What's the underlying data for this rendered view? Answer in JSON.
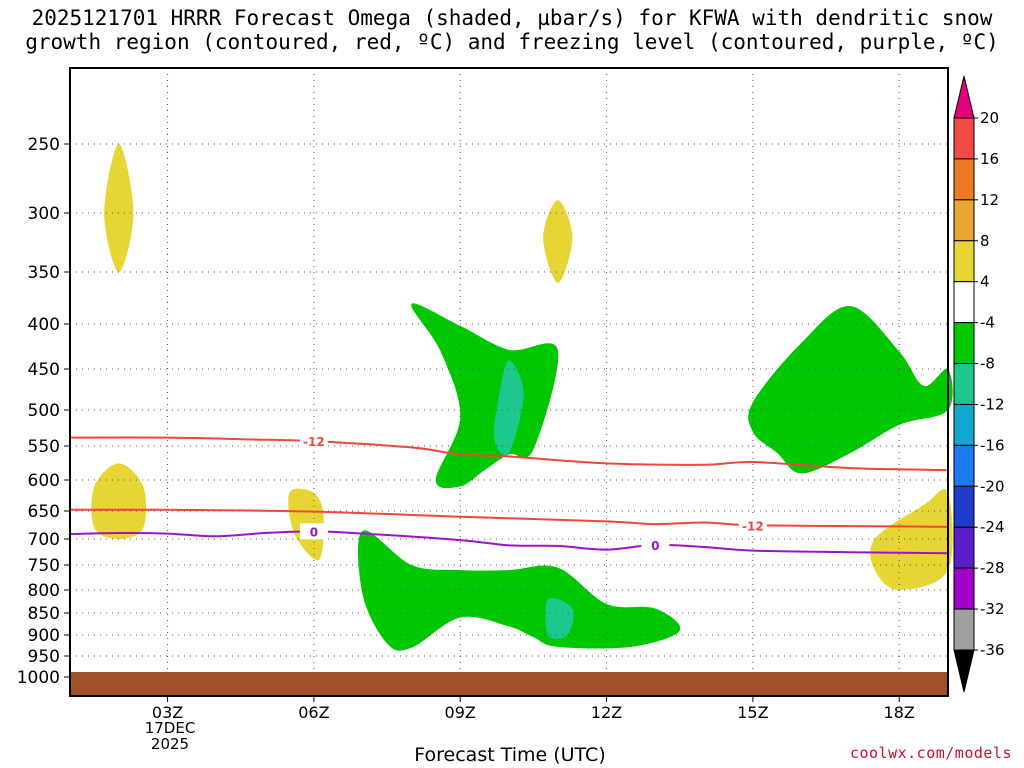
{
  "title": {
    "line1": "2025121701 HRRR Forecast Omega (shaded, µbar/s) for KFWA with dendritic snow",
    "line2": "growth region (contoured, red, ºC) and freezing level (contoured, purple, ºC)"
  },
  "credit": "coolwx.com/models",
  "chart_data": {
    "type": "time-height contour",
    "xlabel": "Forecast Time (UTC)",
    "ylabel": "",
    "x_range_hours": [
      1,
      19
    ],
    "x_ticks": [
      {
        "hour": 3,
        "label": "03Z"
      },
      {
        "hour": 6,
        "label": "06Z"
      },
      {
        "hour": 9,
        "label": "09Z"
      },
      {
        "hour": 12,
        "label": "12Z"
      },
      {
        "hour": 15,
        "label": "15Z"
      },
      {
        "hour": 18,
        "label": "18Z"
      }
    ],
    "date_label": {
      "day": "17DEC",
      "year": "2025"
    },
    "y_ticks_hpa": [
      250,
      300,
      350,
      400,
      450,
      500,
      550,
      600,
      650,
      700,
      750,
      800,
      850,
      900,
      950,
      1000
    ],
    "y_range_hpa": [
      200,
      1000
    ],
    "colorbar": {
      "labels": [
        "20",
        "16",
        "12",
        "8",
        "4",
        "-4",
        "-8",
        "-12",
        "-16",
        "-20",
        "-24",
        "-28",
        "-32",
        "-36"
      ],
      "colors": [
        "#e4007c",
        "#f44a45",
        "#ee7b24",
        "#e7a736",
        "#e6d534",
        "#ffffff",
        "#00c800",
        "#1ec88c",
        "#10a8d0",
        "#1e78f0",
        "#1e3cc8",
        "#5a1ec8",
        "#a000c8",
        "#a0a0a0",
        "#000000"
      ]
    },
    "contours": [
      {
        "name": "dgz-warm-edge",
        "color": "#f0463c",
        "value": -12,
        "label": "-12",
        "points": [
          [
            1,
            648
          ],
          [
            3,
            648
          ],
          [
            6,
            651
          ],
          [
            9,
            660
          ],
          [
            12,
            668
          ],
          [
            13,
            673
          ],
          [
            14,
            670
          ],
          [
            15,
            675
          ],
          [
            18,
            677
          ],
          [
            19,
            678
          ]
        ]
      },
      {
        "name": "dgz-cold-edge",
        "color": "#f0463c",
        "value": -12,
        "label": "-12",
        "points": [
          [
            1,
            538
          ],
          [
            3,
            538
          ],
          [
            5,
            541
          ],
          [
            6,
            543
          ],
          [
            8,
            552
          ],
          [
            9,
            562
          ],
          [
            10,
            565
          ],
          [
            12,
            575
          ],
          [
            14,
            577
          ],
          [
            15,
            573
          ],
          [
            17,
            582
          ],
          [
            19,
            585
          ]
        ]
      },
      {
        "name": "freezing-level",
        "color": "#9b14c8",
        "value": 0,
        "label": "0",
        "points": [
          [
            1,
            691
          ],
          [
            2,
            689
          ],
          [
            3,
            690
          ],
          [
            4,
            695
          ],
          [
            5,
            689
          ],
          [
            6,
            686
          ],
          [
            7,
            690
          ],
          [
            9,
            702
          ],
          [
            10,
            712
          ],
          [
            11,
            713
          ],
          [
            12,
            720
          ],
          [
            13,
            711
          ],
          [
            14,
            715
          ],
          [
            15,
            722
          ],
          [
            17,
            725
          ],
          [
            19,
            727
          ]
        ]
      }
    ],
    "contour_label_positions": [
      {
        "line": "dgz-cold-edge",
        "hour": 6,
        "text": "-12"
      },
      {
        "line": "dgz-warm-edge",
        "hour": 15,
        "text": "-12"
      },
      {
        "line": "freezing-level",
        "hour": 6,
        "text": "0"
      },
      {
        "line": "freezing-level",
        "hour": 13,
        "text": "0"
      }
    ],
    "shaded_regions": [
      {
        "name": "upward-omega-core",
        "fill": "#00c800",
        "points": [
          [
            7,
            685
          ],
          [
            8,
            750
          ],
          [
            9,
            760
          ],
          [
            10,
            760
          ],
          [
            11,
            755
          ],
          [
            12,
            830
          ],
          [
            13,
            840
          ],
          [
            13.5,
            890
          ],
          [
            12.5,
            928
          ],
          [
            11,
            928
          ],
          [
            10.5,
            905
          ],
          [
            10,
            880
          ],
          [
            9,
            860
          ],
          [
            8,
            930
          ],
          [
            7.5,
            920
          ],
          [
            7,
            810
          ]
        ]
      },
      {
        "name": "upward-omega-mid",
        "fill": "#00c800",
        "points": [
          [
            8,
            380
          ],
          [
            9,
            402
          ],
          [
            10,
            428
          ],
          [
            11,
            428
          ],
          [
            10.5,
            555
          ],
          [
            10,
            562
          ],
          [
            9.5,
            585
          ],
          [
            9,
            610
          ],
          [
            8.5,
            600
          ],
          [
            9,
            510
          ],
          [
            8.6,
            430
          ]
        ]
      },
      {
        "name": "upward-omega-east",
        "fill": "#00c800",
        "points": [
          [
            15,
            490
          ],
          [
            16,
            420
          ],
          [
            17,
            382
          ],
          [
            18,
            430
          ],
          [
            18.5,
            470
          ],
          [
            19,
            450
          ],
          [
            19,
            500
          ],
          [
            18,
            520
          ],
          [
            17,
            560
          ],
          [
            16,
            590
          ],
          [
            15.5,
            560
          ],
          [
            15,
            530
          ]
        ]
      },
      {
        "name": "strong-upward-core",
        "fill": "#1ec88c",
        "points": [
          [
            10,
            440
          ],
          [
            10.3,
            480
          ],
          [
            10,
            560
          ],
          [
            9.7,
            540
          ],
          [
            9.8,
            480
          ]
        ]
      },
      {
        "name": "strong-upward-low",
        "fill": "#1ec88c",
        "points": [
          [
            10.8,
            820
          ],
          [
            11.3,
            840
          ],
          [
            11.2,
            900
          ],
          [
            10.8,
            900
          ]
        ]
      },
      {
        "name": "downward-omega-w",
        "fill": "#e6d534",
        "points": [
          [
            2,
            575
          ],
          [
            2.5,
            610
          ],
          [
            2.5,
            680
          ],
          [
            2,
            700
          ],
          [
            1.5,
            680
          ],
          [
            1.5,
            610
          ]
        ]
      },
      {
        "name": "downward-omega-mid",
        "fill": "#e6d534",
        "points": [
          [
            6,
            620
          ],
          [
            6.2,
            660
          ],
          [
            6.1,
            740
          ],
          [
            5.6,
            690
          ],
          [
            5.5,
            620
          ]
        ]
      },
      {
        "name": "downward-omega-e",
        "fill": "#e6d534",
        "points": [
          [
            18.5,
            640
          ],
          [
            19,
            620
          ],
          [
            19,
            760
          ],
          [
            18,
            800
          ],
          [
            17.5,
            760
          ],
          [
            17.5,
            700
          ]
        ]
      },
      {
        "name": "downward-omega-upper",
        "fill": "#e6d534",
        "points": [
          [
            2,
            250
          ],
          [
            2.3,
            300
          ],
          [
            2,
            350
          ],
          [
            1.7,
            300
          ]
        ]
      },
      {
        "name": "downward-omega-upper2",
        "fill": "#e6d534",
        "points": [
          [
            11,
            290
          ],
          [
            11.3,
            320
          ],
          [
            11,
            360
          ],
          [
            10.7,
            320
          ]
        ]
      }
    ]
  }
}
